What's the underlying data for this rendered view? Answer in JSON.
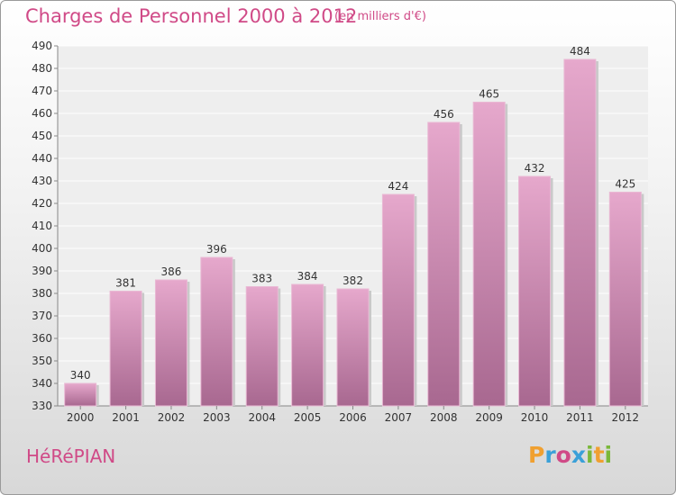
{
  "header": {
    "title": "Charges de Personnel 2000 à 2012",
    "subtitle": "(en milliers d'€)"
  },
  "footer": {
    "commune": "HéRéPIAN",
    "logo": "Proxiti"
  },
  "colors": {
    "accent": "#d04a87",
    "bar_top": "#e6a8cc",
    "bar_bottom": "#a86890",
    "logo": [
      "#f0a030",
      "#3aa0d8",
      "#d04a87",
      "#3aa0d8",
      "#7ab83a",
      "#f0a030",
      "#7ab83a"
    ]
  },
  "chart_data": {
    "type": "bar",
    "title": "Charges de Personnel 2000 à 2012",
    "subtitle": "(en milliers d'€)",
    "categories": [
      "2000",
      "2001",
      "2002",
      "2003",
      "2004",
      "2005",
      "2006",
      "2007",
      "2008",
      "2009",
      "2010",
      "2011",
      "2012"
    ],
    "values": [
      340,
      381,
      386,
      396,
      383,
      384,
      382,
      424,
      456,
      465,
      432,
      484,
      425
    ],
    "ylim": [
      330,
      490
    ],
    "yticks": [
      330,
      340,
      350,
      360,
      370,
      380,
      390,
      400,
      410,
      420,
      430,
      440,
      450,
      460,
      470,
      480,
      490
    ],
    "grid": true,
    "xlabel": "",
    "ylabel": ""
  }
}
